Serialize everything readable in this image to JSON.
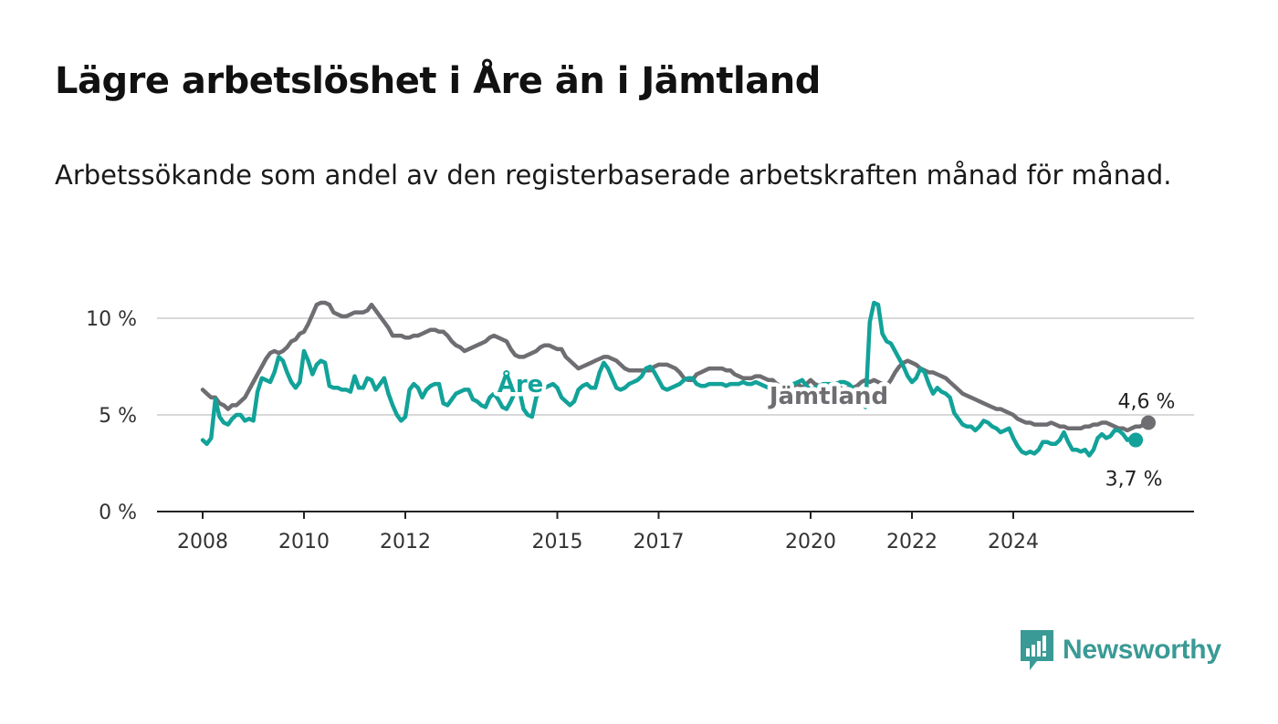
{
  "title": "Lägre arbetslöshet i Åre än i Jämtland",
  "subtitle": "Arbetssökande som andel av den registerbaserade arbetskraften månad för månad.",
  "brand": {
    "name": "Newsworthy",
    "color": "#3a9a95",
    "icon": "bar-chart-speech-bubble-icon"
  },
  "chart_data": {
    "type": "line",
    "x_start": "2008-01",
    "x_step": "month",
    "xticks": [
      "2008",
      "2010",
      "2012",
      "2015",
      "2017",
      "2020",
      "2022",
      "2024"
    ],
    "yticks": [
      "0 %",
      "5 %",
      "10 %"
    ],
    "ylim": [
      0,
      10
    ],
    "grid": true,
    "series": [
      {
        "name": "Jämtland",
        "color": "#6e6e72",
        "end_label": "4,6 %",
        "values": [
          6.3,
          6.1,
          5.9,
          5.9,
          5.6,
          5.5,
          5.3,
          5.5,
          5.5,
          5.7,
          5.9,
          6.3,
          6.7,
          7.1,
          7.5,
          7.9,
          8.2,
          8.3,
          8.2,
          8.3,
          8.5,
          8.8,
          8.9,
          9.2,
          9.3,
          9.7,
          10.2,
          10.7,
          10.8,
          10.8,
          10.7,
          10.3,
          10.2,
          10.1,
          10.1,
          10.2,
          10.3,
          10.3,
          10.3,
          10.4,
          10.7,
          10.4,
          10.1,
          9.8,
          9.5,
          9.1,
          9.1,
          9.1,
          9.0,
          9.0,
          9.1,
          9.1,
          9.2,
          9.3,
          9.4,
          9.4,
          9.3,
          9.3,
          9.1,
          8.8,
          8.6,
          8.5,
          8.3,
          8.4,
          8.5,
          8.6,
          8.7,
          8.8,
          9.0,
          9.1,
          9.0,
          8.9,
          8.8,
          8.4,
          8.1,
          8.0,
          8.0,
          8.1,
          8.2,
          8.3,
          8.5,
          8.6,
          8.6,
          8.5,
          8.4,
          8.4,
          8.0,
          7.8,
          7.6,
          7.4,
          7.5,
          7.6,
          7.7,
          7.8,
          7.9,
          8.0,
          8.0,
          7.9,
          7.8,
          7.6,
          7.4,
          7.3,
          7.3,
          7.3,
          7.3,
          7.3,
          7.3,
          7.5,
          7.6,
          7.6,
          7.6,
          7.5,
          7.4,
          7.2,
          6.9,
          6.8,
          6.8,
          7.1,
          7.2,
          7.3,
          7.4,
          7.4,
          7.4,
          7.4,
          7.3,
          7.3,
          7.1,
          7.0,
          6.9,
          6.9,
          6.9,
          7.0,
          7.0,
          6.9,
          6.8,
          6.8,
          6.6,
          6.5,
          6.5,
          6.3,
          6.5,
          6.6,
          6.4,
          6.6,
          6.8,
          6.6,
          6.5,
          6.5,
          6.4,
          6.4,
          6.5,
          6.4,
          6.3,
          6.4,
          6.4,
          6.5,
          6.7,
          6.8,
          6.7,
          6.8,
          6.7,
          6.6,
          6.5,
          6.8,
          7.2,
          7.5,
          7.7,
          7.8,
          7.7,
          7.6,
          7.4,
          7.3,
          7.2,
          7.2,
          7.1,
          7.0,
          6.9,
          6.7,
          6.5,
          6.3,
          6.1,
          6.0,
          5.9,
          5.8,
          5.7,
          5.6,
          5.5,
          5.4,
          5.3,
          5.3,
          5.2,
          5.1,
          5.0,
          4.8,
          4.7,
          4.6,
          4.6,
          4.5,
          4.5,
          4.5,
          4.5,
          4.6,
          4.5,
          4.4,
          4.4,
          4.3,
          4.3,
          4.3,
          4.3,
          4.4,
          4.4,
          4.5,
          4.5,
          4.6,
          4.6,
          4.5,
          4.4,
          4.3,
          4.3,
          4.2,
          4.3,
          4.4,
          4.4,
          4.5,
          4.6
        ]
      },
      {
        "name": "Åre",
        "color": "#12a299",
        "end_label": "3,7 %",
        "values": [
          3.7,
          3.5,
          3.8,
          5.8,
          4.9,
          4.6,
          4.5,
          4.8,
          5.0,
          5.0,
          4.7,
          4.8,
          4.7,
          6.2,
          6.9,
          6.8,
          6.7,
          7.2,
          8.0,
          7.8,
          7.2,
          6.7,
          6.4,
          6.7,
          8.3,
          7.8,
          7.1,
          7.6,
          7.8,
          7.7,
          6.5,
          6.4,
          6.4,
          6.3,
          6.3,
          6.2,
          7.0,
          6.4,
          6.4,
          6.9,
          6.8,
          6.3,
          6.6,
          6.9,
          6.1,
          5.5,
          5.0,
          4.7,
          4.9,
          6.3,
          6.6,
          6.4,
          5.9,
          6.3,
          6.5,
          6.6,
          6.6,
          5.6,
          5.5,
          5.8,
          6.1,
          6.2,
          6.3,
          6.3,
          5.8,
          5.7,
          5.5,
          5.4,
          5.9,
          6.1,
          5.8,
          5.4,
          5.3,
          5.7,
          6.2,
          6.3,
          5.3,
          5.0,
          4.9,
          5.9,
          6.3,
          6.4,
          6.5,
          6.6,
          6.4,
          5.9,
          5.7,
          5.5,
          5.7,
          6.3,
          6.5,
          6.6,
          6.4,
          6.4,
          7.2,
          7.7,
          7.4,
          6.9,
          6.4,
          6.3,
          6.4,
          6.6,
          6.7,
          6.8,
          7.0,
          7.4,
          7.5,
          7.2,
          6.8,
          6.4,
          6.3,
          6.4,
          6.5,
          6.6,
          6.8,
          6.9,
          6.9,
          6.6,
          6.5,
          6.5,
          6.6,
          6.6,
          6.6,
          6.6,
          6.5,
          6.6,
          6.6,
          6.6,
          6.7,
          6.6,
          6.6,
          6.7,
          6.6,
          6.5,
          6.4,
          6.4,
          6.5,
          6.5,
          6.5,
          6.6,
          6.6,
          6.7,
          6.8,
          6.5,
          6.3,
          6.4,
          6.5,
          6.6,
          6.6,
          6.6,
          6.6,
          6.7,
          6.7,
          6.6,
          6.4,
          6.0,
          5.7,
          5.4,
          9.8,
          10.8,
          10.7,
          9.2,
          8.8,
          8.7,
          8.3,
          7.9,
          7.5,
          7.0,
          6.7,
          6.9,
          7.4,
          7.2,
          6.6,
          6.1,
          6.4,
          6.2,
          6.1,
          5.9,
          5.1,
          4.8,
          4.5,
          4.4,
          4.4,
          4.2,
          4.4,
          4.7,
          4.6,
          4.4,
          4.3,
          4.1,
          4.2,
          4.3,
          3.8,
          3.4,
          3.1,
          3.0,
          3.1,
          3.0,
          3.2,
          3.6,
          3.6,
          3.5,
          3.5,
          3.7,
          4.1,
          3.6,
          3.2,
          3.2,
          3.1,
          3.2,
          2.9,
          3.2,
          3.8,
          4.0,
          3.8,
          3.9,
          4.2,
          4.2,
          4.0,
          3.7,
          3.8,
          3.7
        ]
      }
    ]
  }
}
